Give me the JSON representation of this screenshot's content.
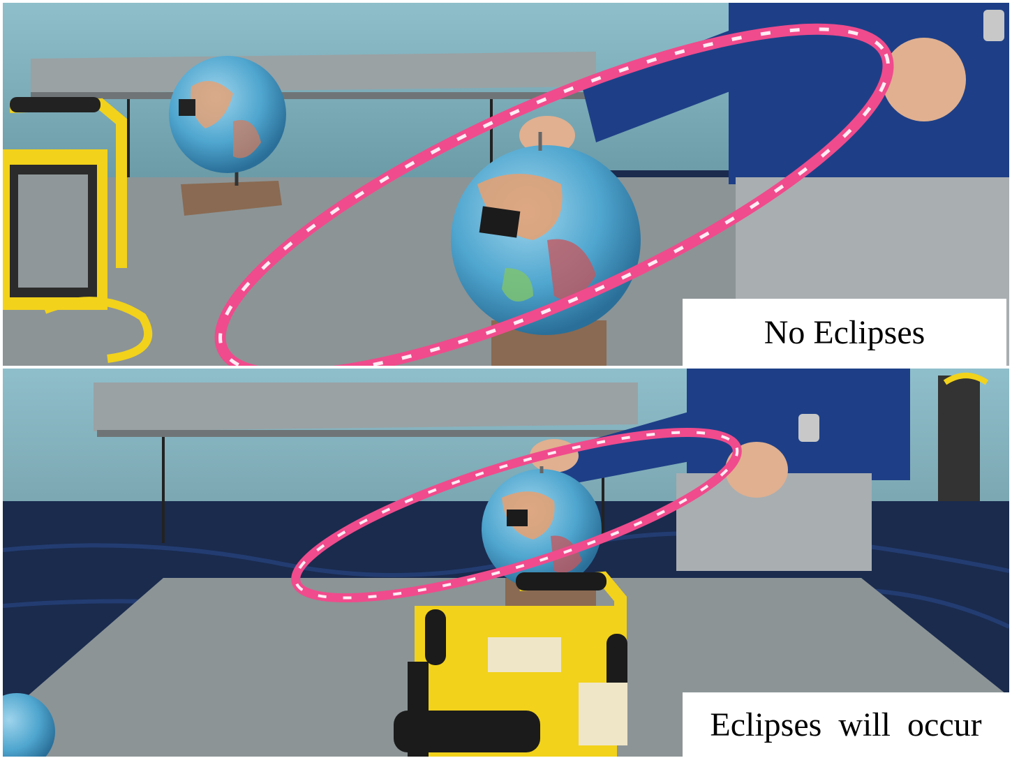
{
  "panels": [
    {
      "caption": "No Eclipses"
    },
    {
      "caption": "Eclipses will occur"
    }
  ],
  "colors": {
    "wall": "#7fb0bd",
    "table": "#8c9496",
    "hoop": "#f04b8c",
    "lamp": "#f2d21b",
    "globe": "#4fa6cf",
    "shirt": "#1e3f87",
    "skirt": "#a9aeb1",
    "carpet": "#1a2b4e"
  }
}
